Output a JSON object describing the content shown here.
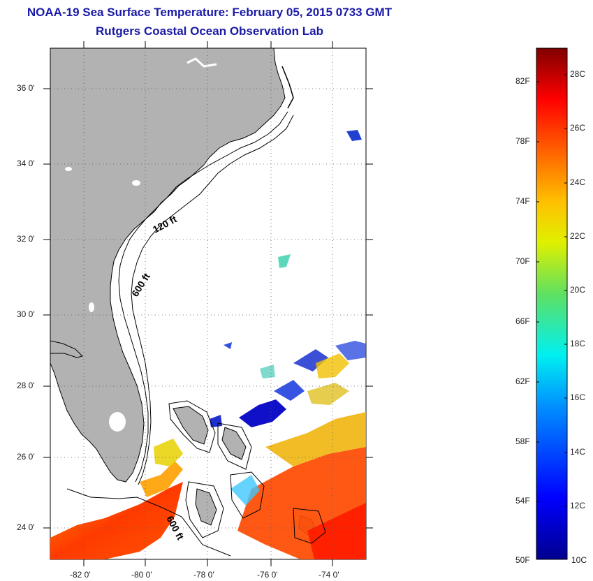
{
  "header": {
    "title": "NOAA-19 Sea Surface Temperature:  February 05, 2015 0733 GMT",
    "subtitle": "Rutgers Coastal Ocean Observation Lab"
  },
  "map": {
    "lat_labels": [
      "36 0'",
      "34 0'",
      "32 0'",
      "30 0'",
      "28 0'",
      "26 0'",
      "24 0'"
    ],
    "lon_labels": [
      "-82 0'",
      "-80 0'",
      "-78 0'",
      "-76 0'",
      "-74 0'"
    ],
    "contour_labels": [
      "120 ft",
      "600 ft",
      "600 ft"
    ],
    "colors": {
      "land": "#b2b2b2",
      "ocean": "#ffffff",
      "contour": "#000000",
      "grid": "#555555"
    }
  },
  "colorbar": {
    "f_labels": [
      "82F",
      "78F",
      "74F",
      "70F",
      "66F",
      "62F",
      "58F",
      "54F",
      "50F"
    ],
    "c_labels": [
      "28C",
      "26C",
      "24C",
      "22C",
      "20C",
      "18C",
      "16C",
      "14C",
      "12C",
      "10C"
    ]
  }
}
